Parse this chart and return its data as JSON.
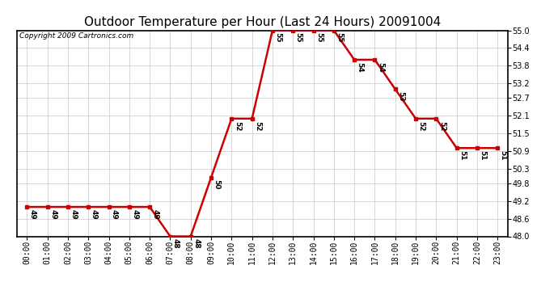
{
  "title": "Outdoor Temperature per Hour (Last 24 Hours) 20091004",
  "copyright_text": "Copyright 2009 Cartronics.com",
  "hours": [
    "00:00",
    "01:00",
    "02:00",
    "03:00",
    "04:00",
    "05:00",
    "06:00",
    "07:00",
    "08:00",
    "09:00",
    "10:00",
    "11:00",
    "12:00",
    "13:00",
    "14:00",
    "15:00",
    "16:00",
    "17:00",
    "18:00",
    "19:00",
    "20:00",
    "21:00",
    "22:00",
    "23:00"
  ],
  "temperatures": [
    49,
    49,
    49,
    49,
    49,
    49,
    49,
    48,
    48,
    50,
    52,
    52,
    55,
    55,
    55,
    55,
    54,
    54,
    53,
    52,
    52,
    51,
    51,
    51
  ],
  "line_color": "#cc0000",
  "marker_color": "#cc0000",
  "bg_color": "#ffffff",
  "grid_color": "#c8c8c8",
  "ylim_min": 48.0,
  "ylim_max": 55.0,
  "yticks": [
    48.0,
    48.6,
    49.2,
    49.8,
    50.3,
    50.9,
    51.5,
    52.1,
    52.7,
    53.2,
    53.8,
    54.4,
    55.0
  ],
  "title_fontsize": 11,
  "annotation_fontsize": 6.5,
  "tick_fontsize": 7,
  "copyright_fontsize": 6.5
}
